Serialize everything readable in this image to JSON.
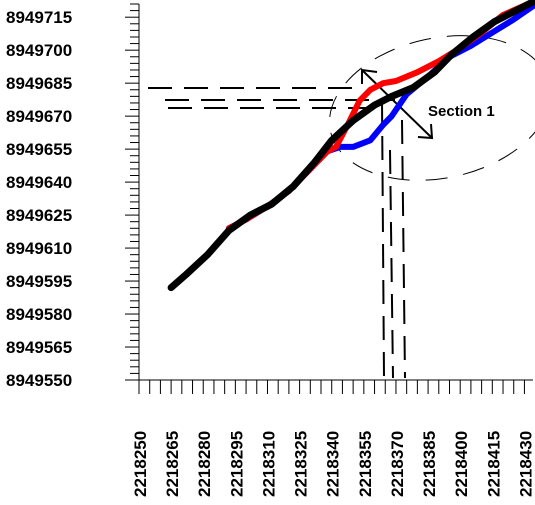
{
  "chart_data": {
    "type": "line",
    "title": "",
    "xlabel": "",
    "ylabel": "",
    "x_ticks": [
      "2218250",
      "2218265",
      "2218280",
      "2218295",
      "2218310",
      "2218325",
      "2218340",
      "2218355",
      "2218370",
      "2218385",
      "2218400",
      "2218415",
      "2218430"
    ],
    "y_ticks": [
      "8949715",
      "8949700",
      "8949685",
      "8949670",
      "8949655",
      "8949640",
      "8949625",
      "8949610",
      "8949595",
      "8949580",
      "8949565",
      "8949550"
    ],
    "xlim": [
      2218250,
      2218434
    ],
    "ylim": [
      8949550,
      8949721
    ],
    "grid": false,
    "series": [
      {
        "color": "#0000ff",
        "x": [
          2218292,
          2218300,
          2218310,
          2218320,
          2218330,
          2218338,
          2218344,
          2218350,
          2218358,
          2218364,
          2218368,
          2218375,
          2218385,
          2218395,
          2218405,
          2218415,
          2218425,
          2218434
        ],
        "y": [
          8949619,
          8949623,
          8949629,
          8949636,
          8949646,
          8949654,
          8949656,
          8949656,
          8949659,
          8949666,
          8949670,
          8949680,
          8949688,
          8949697,
          8949702,
          8949708,
          8949714,
          8949720
        ]
      },
      {
        "color": "#ff0000",
        "x": [
          2218292,
          2218300,
          2218310,
          2218320,
          2218330,
          2218338,
          2218342,
          2218348,
          2218353,
          2218358,
          2218364,
          2218370,
          2218380,
          2218390,
          2218400,
          2218410,
          2218420,
          2218434
        ],
        "y": [
          8949619,
          8949623,
          8949629,
          8949636,
          8949646,
          8949654,
          8949656,
          8949667,
          8949677,
          8949682,
          8949685,
          8949686,
          8949690,
          8949695,
          8949701,
          8949708,
          8949716,
          8949722
        ]
      },
      {
        "color": "#000000",
        "x": [
          2218265,
          2218272,
          2218282,
          2218292,
          2218302,
          2218312,
          2218322,
          2218332,
          2218340,
          2218350,
          2218360,
          2218368,
          2218378,
          2218388,
          2218396,
          2218406,
          2218416,
          2218426,
          2218434
        ],
        "y": [
          8949592,
          8949598,
          8949607,
          8949618,
          8949625,
          8949630,
          8949638,
          8949649,
          8949659,
          8949668,
          8949675,
          8949679,
          8949683,
          8949690,
          8949698,
          8949706,
          8949713,
          8949718,
          8949722
        ]
      }
    ],
    "annotations": [
      {
        "text": "Section 1",
        "type": "ellipse-label"
      }
    ]
  }
}
